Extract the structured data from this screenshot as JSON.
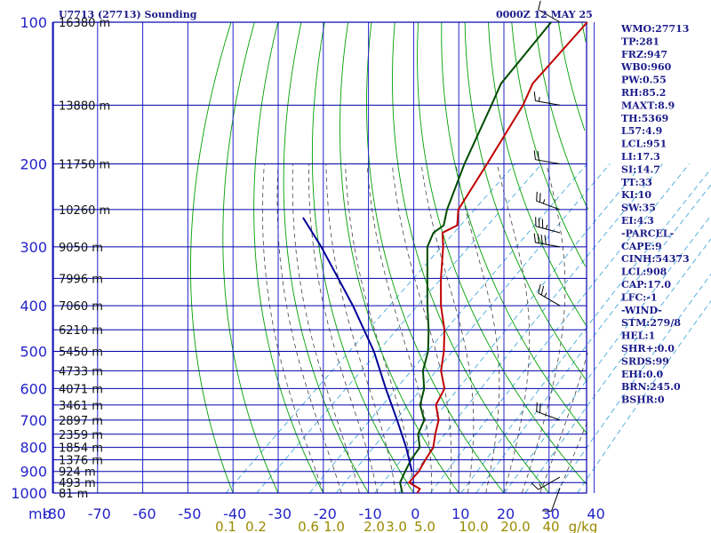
{
  "header": {
    "station": "U7713 (27713) Sounding",
    "datetime": "0000Z 12 MAY 25"
  },
  "chart_data": {
    "type": "line",
    "title": "U7713 (27713) Sounding",
    "y_axis": {
      "label": "mb",
      "scale": "log",
      "range": [
        1000,
        100
      ],
      "ticks": [
        100,
        200,
        300,
        400,
        500,
        600,
        700,
        800,
        900,
        1000
      ],
      "tick_labels": [
        "100",
        "200",
        "300",
        "400",
        "500",
        "600",
        "700",
        "800",
        "900",
        "1000"
      ]
    },
    "x_axis": {
      "range": [
        -80,
        40
      ],
      "ticks": [
        -80,
        -70,
        -60,
        -50,
        -40,
        -30,
        -20,
        -10,
        0,
        10,
        20,
        30,
        40
      ],
      "tick_labels": [
        "-80",
        "-70",
        "-60",
        "-50",
        "-40",
        "-30",
        "-20",
        "-10",
        "0",
        "10",
        "20",
        "30",
        "40"
      ]
    },
    "mixing_ratio_labels": [
      "0.1",
      "0.2",
      "0.6",
      "1.0",
      "2.0",
      "3.0",
      "5.0",
      "10.0",
      "20.0",
      "40",
      "g/kg"
    ],
    "height_labels": [
      {
        "p": 100,
        "text": "16380 m"
      },
      {
        "p": 150,
        "text": "13880 m"
      },
      {
        "p": 200,
        "text": "11750 m"
      },
      {
        "p": 250,
        "text": "10260 m"
      },
      {
        "p": 300,
        "text": "9050 m"
      },
      {
        "p": 350,
        "text": "7996 m"
      },
      {
        "p": 400,
        "text": "7060 m"
      },
      {
        "p": 450,
        "text": "6210 m"
      },
      {
        "p": 500,
        "text": "5450 m"
      },
      {
        "p": 550,
        "text": "4733 m"
      },
      {
        "p": 600,
        "text": "4071 m"
      },
      {
        "p": 650,
        "text": "3461 m"
      },
      {
        "p": 700,
        "text": "2897 m"
      },
      {
        "p": 750,
        "text": "2359 m"
      },
      {
        "p": 800,
        "text": "1854 m"
      },
      {
        "p": 850,
        "text": "1376 m"
      },
      {
        "p": 900,
        "text": "924 m"
      },
      {
        "p": 950,
        "text": "493 m"
      },
      {
        "p": 1000,
        "text": "81 m"
      }
    ],
    "series": [
      {
        "color": "#c00000",
        "points": [
          [
            1000,
            0.8
          ],
          [
            980,
            0.4
          ],
          [
            950,
            -3.5
          ],
          [
            900,
            -4.0
          ],
          [
            850,
            -5.3
          ],
          [
            800,
            -6.5
          ],
          [
            750,
            -9.2
          ],
          [
            700,
            -11.8
          ],
          [
            650,
            -16.0
          ],
          [
            600,
            -18.0
          ],
          [
            550,
            -23.0
          ],
          [
            500,
            -27.0
          ],
          [
            450,
            -32.0
          ],
          [
            400,
            -38.5
          ],
          [
            350,
            -45.0
          ],
          [
            300,
            -52.0
          ],
          [
            280,
            -55.5
          ],
          [
            270,
            -54.0
          ],
          [
            250,
            -57.5
          ],
          [
            200,
            -62.0
          ],
          [
            150,
            -68.0
          ],
          [
            135,
            -71.0
          ],
          [
            100,
            -73.5
          ]
        ]
      },
      {
        "color": "#004c00",
        "points": [
          [
            1000,
            -2.5
          ],
          [
            950,
            -5.5
          ],
          [
            900,
            -7.0
          ],
          [
            850,
            -8.5
          ],
          [
            800,
            -9.5
          ],
          [
            750,
            -13.0
          ],
          [
            700,
            -15.0
          ],
          [
            650,
            -19.5
          ],
          [
            600,
            -22.5
          ],
          [
            550,
            -27.0
          ],
          [
            500,
            -30.5
          ],
          [
            450,
            -35.5
          ],
          [
            400,
            -41.5
          ],
          [
            350,
            -48.0
          ],
          [
            300,
            -55.5
          ],
          [
            280,
            -57.5
          ],
          [
            270,
            -57.0
          ],
          [
            250,
            -60.0
          ],
          [
            200,
            -67.0
          ],
          [
            150,
            -75.0
          ],
          [
            135,
            -78.0
          ],
          [
            100,
            -81.5
          ]
        ]
      },
      {
        "color": "#000099",
        "points": [
          [
            900,
            -5.5
          ],
          [
            800,
            -12.5
          ],
          [
            700,
            -21.0
          ],
          [
            600,
            -31.0
          ],
          [
            500,
            -42.5
          ],
          [
            400,
            -58.0
          ],
          [
            300,
            -79.0
          ],
          [
            260,
            -90.0
          ]
        ]
      }
    ],
    "wind_barbs": [
      {
        "p": 100,
        "dir": 300,
        "spd": 10
      },
      {
        "p": 150,
        "dir": 280,
        "spd": 15
      },
      {
        "p": 200,
        "dir": 280,
        "spd": 20
      },
      {
        "p": 250,
        "dir": 290,
        "spd": 25
      },
      {
        "p": 280,
        "dir": 285,
        "spd": 35
      },
      {
        "p": 300,
        "dir": 280,
        "spd": 40
      },
      {
        "p": 400,
        "dir": 300,
        "spd": 25
      },
      {
        "p": 700,
        "dir": 290,
        "spd": 20
      },
      {
        "p": 925,
        "dir": 240,
        "spd": 15
      },
      {
        "p": 975,
        "dir": 200,
        "spd": 10
      }
    ]
  },
  "indices": [
    "WMO:27713",
    "TP:281",
    "FRZ:947",
    "WB0:960",
    "PW:0.55",
    "RH:85.2",
    "MAXT:8.9",
    "TH:5369",
    "L57:4.9",
    "LCL:951",
    "LI:17.3",
    "SI:14.7",
    "TT:33",
    "KI:10",
    "SW:35",
    "EI:4.3",
    "-PARCEL-",
    "CAPE:9",
    "CINH:54373",
    "LCL:908",
    "CAP:17.0",
    "LFC:-1",
    "-WIND-",
    "STM:279/8",
    "HEL:1",
    "SHR+:0.0",
    "SRDS:99",
    "EHI:0.0",
    "BRN:245.0",
    "BSHR:0"
  ],
  "colors": {
    "isobar": "#0000aa",
    "isotherm": "#2323c8",
    "dry_adiabat": "#00a000",
    "moist_adiabat": "#444444",
    "mixing_ratio": "#33a0d8",
    "temperature": "#c00000",
    "dewpoint": "#004c00",
    "parcel": "#000099"
  }
}
